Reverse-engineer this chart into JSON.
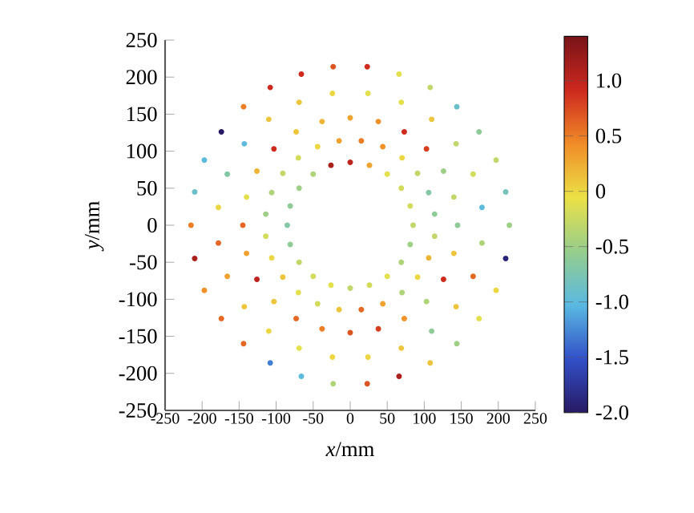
{
  "chart_data": {
    "type": "scatter",
    "xlabel": "*x*/mm",
    "ylabel": "*y*/mm",
    "marker": "circle",
    "xlim": [
      -250,
      250
    ],
    "ylim": [
      -250,
      250
    ],
    "xticks": [
      -250,
      -200,
      -150,
      -100,
      -50,
      0,
      50,
      100,
      150,
      200,
      250
    ],
    "yticks": [
      -250,
      -200,
      -150,
      -100,
      -50,
      0,
      50,
      100,
      150,
      200,
      250
    ],
    "clim": [
      -2,
      1.4
    ],
    "cticks": [
      {
        "value": -2,
        "label": "-2.0"
      },
      {
        "value": -1.5,
        "label": "-1.5"
      },
      {
        "value": -1,
        "label": "-1.0"
      },
      {
        "value": -0.5,
        "label": "-0.5"
      },
      {
        "value": 0,
        "label": "0"
      },
      {
        "value": 0.5,
        "label": "0.5"
      },
      {
        "value": 1,
        "label": "1.0"
      }
    ],
    "x": [
      215,
      210,
      197,
      174,
      144,
      108,
      66,
      23,
      -23,
      -66,
      -108,
      -144,
      -174,
      -197,
      -210,
      -215,
      -210,
      -197,
      -174,
      -144,
      -108,
      -66,
      -23,
      23,
      66,
      108,
      144,
      174,
      197,
      210,
      178,
      166,
      143,
      110,
      69,
      24,
      -24,
      -69,
      -110,
      -143,
      -166,
      -178,
      -178,
      -166,
      -143,
      -110,
      -69,
      -24,
      24,
      69,
      110,
      143,
      166,
      178,
      145,
      140,
      126,
      103,
      73,
      38,
      0,
      -38,
      -73,
      -103,
      -126,
      -140,
      -145,
      -140,
      -126,
      -103,
      -73,
      -38,
      0,
      38,
      73,
      103,
      126,
      140,
      114,
      106,
      91,
      70,
      44,
      15,
      -15,
      -44,
      -70,
      -91,
      -106,
      -114,
      -114,
      -106,
      -91,
      -70,
      -44,
      -15,
      15,
      44,
      70,
      91,
      106,
      114,
      85,
      81,
      69,
      50,
      26,
      0,
      -26,
      -50,
      -69,
      -81,
      -85,
      -81,
      -69,
      -50,
      -26,
      0,
      26,
      50,
      69,
      81
    ],
    "values": [
      0,
      45,
      88,
      126,
      160,
      186,
      204,
      214,
      214,
      204,
      186,
      160,
      126,
      88,
      45,
      0,
      -45,
      -88,
      -126,
      -160,
      -186,
      -204,
      -214,
      -214,
      -204,
      -186,
      -160,
      -126,
      -88,
      -45,
      24,
      69,
      110,
      143,
      166,
      178,
      178,
      166,
      143,
      110,
      69,
      24,
      -24,
      -69,
      -110,
      -143,
      -166,
      -178,
      -178,
      -166,
      -143,
      -110,
      -69,
      -24,
      0,
      38,
      73,
      103,
      126,
      140,
      145,
      140,
      126,
      103,
      73,
      38,
      0,
      -38,
      -73,
      -103,
      -126,
      -140,
      -145,
      -140,
      -126,
      -103,
      -73,
      -38,
      15,
      44,
      70,
      91,
      106,
      114,
      114,
      106,
      91,
      70,
      44,
      15,
      -15,
      -44,
      -70,
      -91,
      -106,
      -114,
      -114,
      -106,
      -91,
      -70,
      -44,
      -15,
      0,
      26,
      50,
      69,
      81,
      85,
      81,
      69,
      50,
      26,
      0,
      -26,
      -50,
      -69,
      -81,
      -85,
      -81,
      -69,
      -50,
      -26
    ],
    "cvalues": [
      -0.5,
      -0.8,
      -0.3,
      -0.6,
      -0.9,
      -0.3,
      -0.1,
      0.9,
      0.7,
      0.9,
      0.9,
      0.5,
      -2.0,
      -1.0,
      -0.9,
      0.5,
      1.1,
      0.4,
      0.6,
      0.6,
      -1.3,
      -1.0,
      -0.4,
      0.7,
      1.1,
      0.1,
      -0.5,
      -0.1,
      0.0,
      -1.9,
      -1.0,
      -0.2,
      -0.3,
      0.1,
      -0.1,
      -0.1,
      0.0,
      0.1,
      0.1,
      -1.0,
      -0.7,
      0.0,
      0.6,
      0.3,
      0.1,
      0.0,
      -0.1,
      0.0,
      0.0,
      0.1,
      -0.6,
      0.1,
      0.6,
      -0.4,
      -0.6,
      -0.3,
      -0.5,
      0.8,
      0.9,
      0.4,
      0.3,
      0.2,
      0.1,
      0.9,
      0.2,
      -0.1,
      0.6,
      0.3,
      1.0,
      0.1,
      0.6,
      0.5,
      0.7,
      0.8,
      0.4,
      -0.4,
      0.9,
      0.1,
      -0.6,
      -0.7,
      -0.3,
      0.0,
      0.4,
      0.5,
      0.3,
      0.0,
      -0.2,
      -0.3,
      -0.4,
      -0.5,
      -0.2,
      0.0,
      0.1,
      -0.1,
      -0.2,
      0.1,
      0.6,
      0.3,
      -0.4,
      0.0,
      0.2,
      -0.3,
      -0.3,
      -0.2,
      -0.2,
      -0.1,
      0.3,
      1.0,
      1.1,
      -0.4,
      -0.5,
      -0.6,
      -0.7,
      -0.6,
      -0.3,
      -0.2,
      -0.1,
      -0.3,
      -0.2,
      -0.1,
      -0.4,
      -0.5
    ]
  }
}
